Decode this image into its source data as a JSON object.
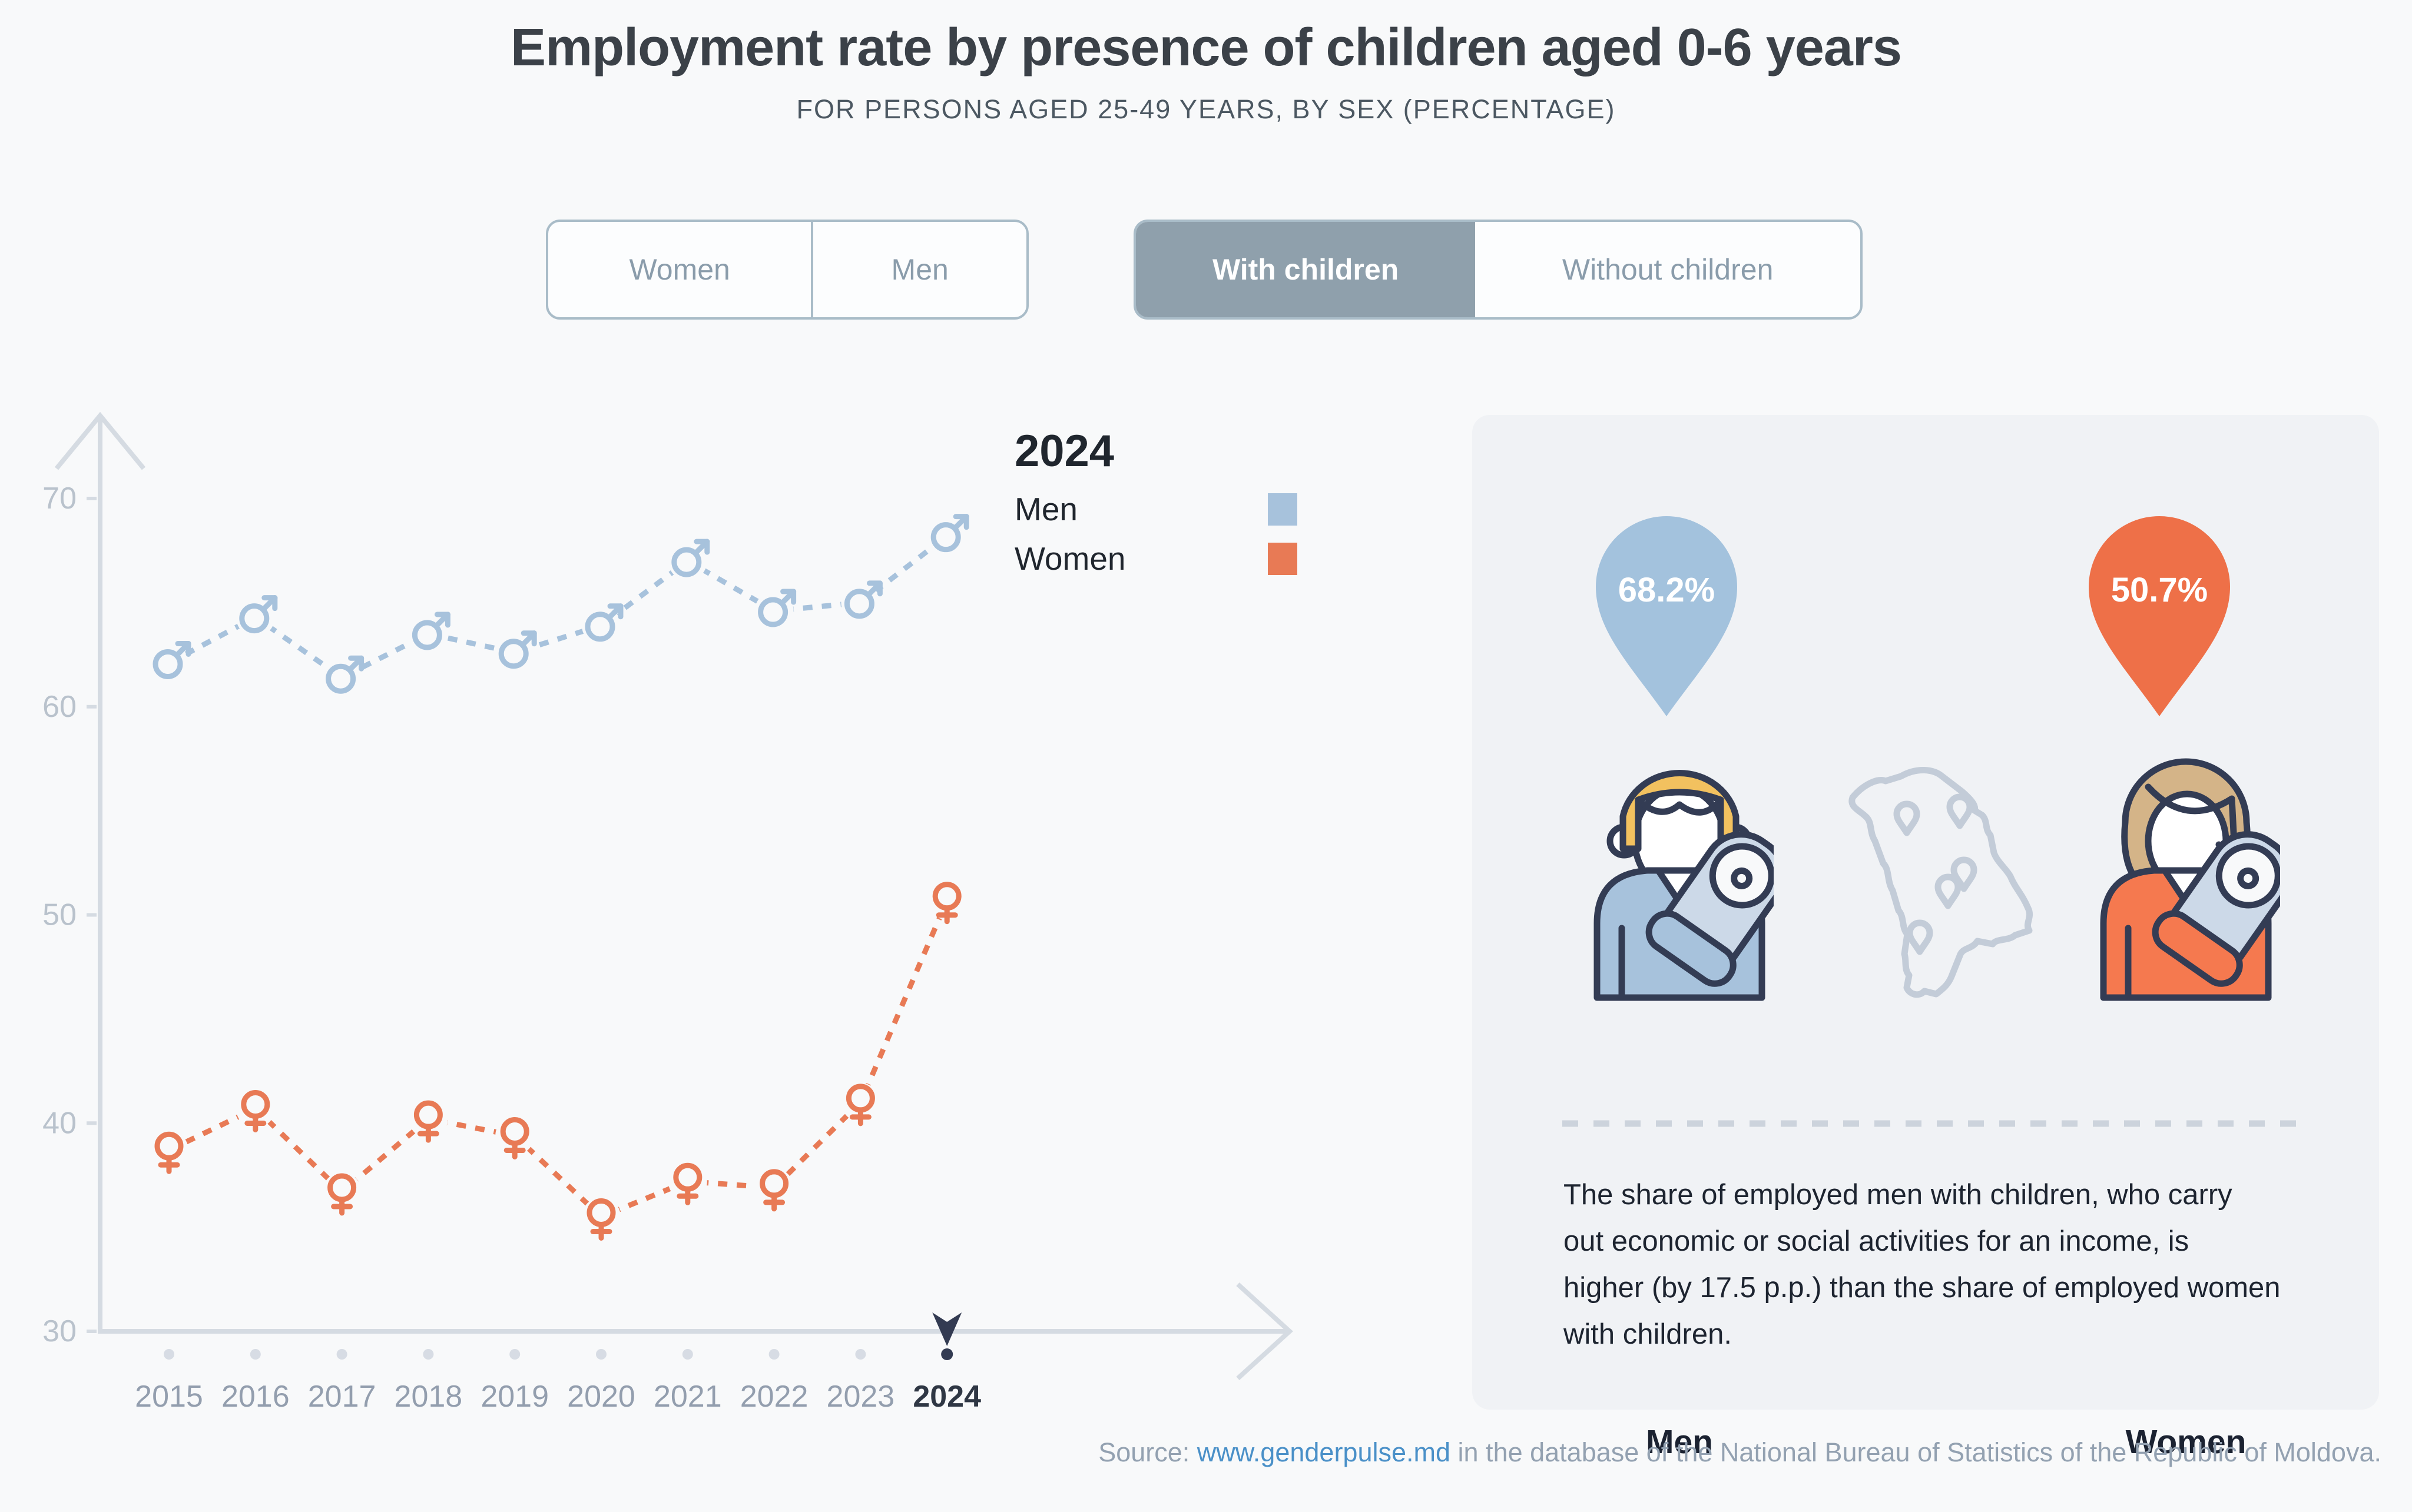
{
  "header": {
    "title": "Employment rate by presence of children aged 0-6 years",
    "subtitle": "FOR PERSONS AGED 25-49 YEARS, BY SEX (PERCENTAGE)"
  },
  "toggles": {
    "sex": {
      "options": [
        "Women",
        "Men"
      ],
      "selected": ""
    },
    "children": {
      "options": [
        "With children",
        "Without children"
      ],
      "selected": "With children"
    }
  },
  "legend": {
    "year": "2024",
    "series": [
      {
        "label": "Men",
        "color": "#a7c2dc"
      },
      {
        "label": "Women",
        "color": "#e87a55"
      }
    ]
  },
  "chart_data": {
    "type": "line",
    "x": [
      2015,
      2016,
      2017,
      2018,
      2019,
      2020,
      2021,
      2022,
      2023,
      2024
    ],
    "series": [
      {
        "name": "Men",
        "marker": "male",
        "color": "#a7c2dc",
        "values": [
          62.1,
          64.3,
          61.4,
          63.5,
          62.6,
          63.9,
          67.0,
          64.6,
          65.0,
          68.2
        ]
      },
      {
        "name": "Women",
        "marker": "female",
        "color": "#e87a55",
        "values": [
          38.7,
          40.7,
          36.7,
          40.2,
          39.4,
          35.5,
          37.2,
          36.9,
          41.0,
          50.7
        ]
      }
    ],
    "yticks": [
      30,
      40,
      50,
      60,
      70
    ],
    "ylim": [
      30,
      72
    ],
    "grid": false,
    "line_style": "dashed",
    "selected_year": 2024,
    "title": "Employment rate by presence of children aged 0-6 years",
    "xlabel": "",
    "ylabel": ""
  },
  "panel": {
    "men_value": "68.2%",
    "women_value": "50.7%",
    "men_label": "Men",
    "women_label": "Women",
    "note_lines": [
      "The share of employed men with children, who carry",
      "out economic or social activities for an income, is",
      "higher (by 17.5 p.p.) than the share of employed women",
      "with children."
    ]
  },
  "source": {
    "prefix": "Source: ",
    "link": "www.genderpulse.md",
    "suffix": " in the database of the National Bureau of Statistics of the Republic of Moldova."
  },
  "colors": {
    "background": "#f8f9fa",
    "panel_bg": "#f0f2f5",
    "men_blue": "#a7c2dc",
    "women_orange": "#e87a55",
    "balloon_blue": "#a3c2dd",
    "balloon_orange": "#ee7048",
    "outline_navy": "#333c54",
    "axis": "#d5dbe2",
    "tick_label": "#b9c2cc",
    "year_label": "#939eae",
    "selected_dark": "#333b52",
    "map_outline": "#c3ccd8",
    "hair_blond": "#f2c15f",
    "hair_tan": "#d4b488",
    "blanket": "#ccd9e8"
  }
}
